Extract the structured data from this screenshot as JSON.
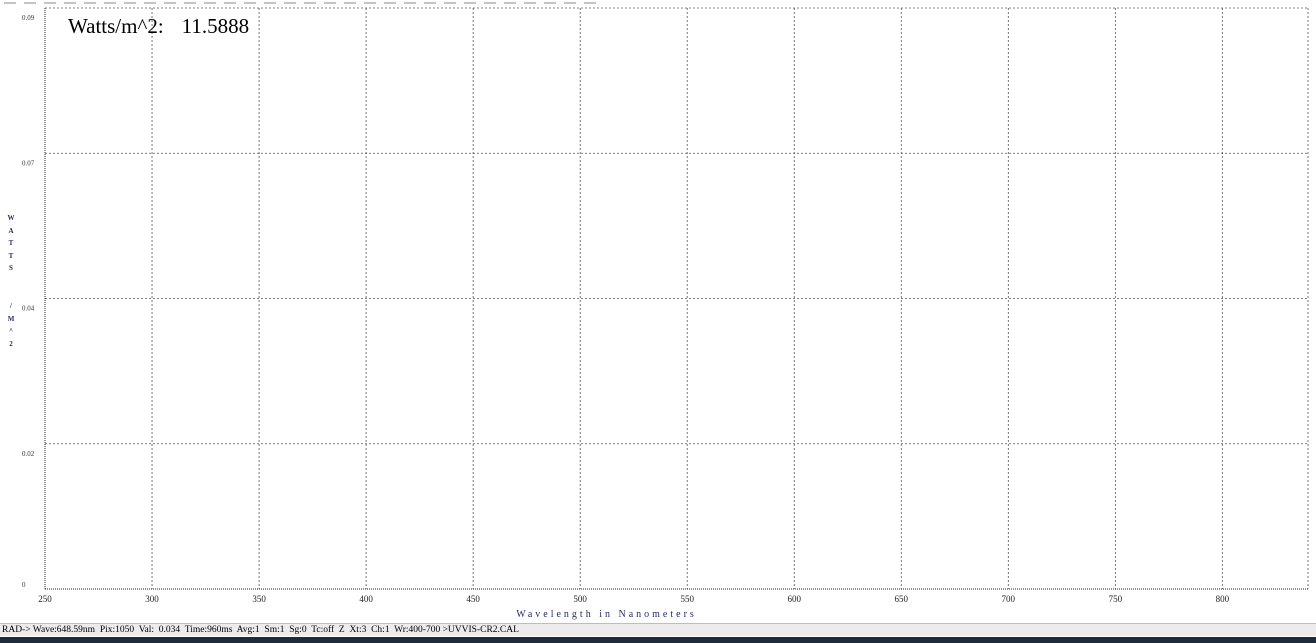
{
  "reading": {
    "label": "Watts/m^2:",
    "value": "11.5888"
  },
  "status_text": "RAD-> Wave:648.59nm  Pix:1050  Val:  0.034  Time:960ms  Avg:1  Sm:1  Sg:0  Tc:off  Z  Xt:3  Ch:1  Wr:400-700 >UVVIS-CR2.CAL",
  "chart_data": {
    "type": "line",
    "xlabel": "Wavelength in Nanometers",
    "ylabel": "WATTS/M^2",
    "ylabel_letters": [
      "W",
      "A",
      "T",
      "T",
      "S",
      "",
      "/",
      "M",
      "^",
      "2"
    ],
    "xlim": [
      250,
      840
    ],
    "x_ticks": [
      250,
      300,
      350,
      400,
      450,
      500,
      550,
      600,
      650,
      700,
      750,
      800
    ],
    "y_ticks": [
      {
        "value": 0,
        "label": "0"
      },
      {
        "value": 0.02,
        "label": "0.02"
      },
      {
        "value": 0.04,
        "label": "0.04"
      },
      {
        "value": 0.07,
        "label": "0.07"
      },
      {
        "value": 0.09,
        "label": "0.09"
      }
    ],
    "grid": true,
    "series": []
  }
}
